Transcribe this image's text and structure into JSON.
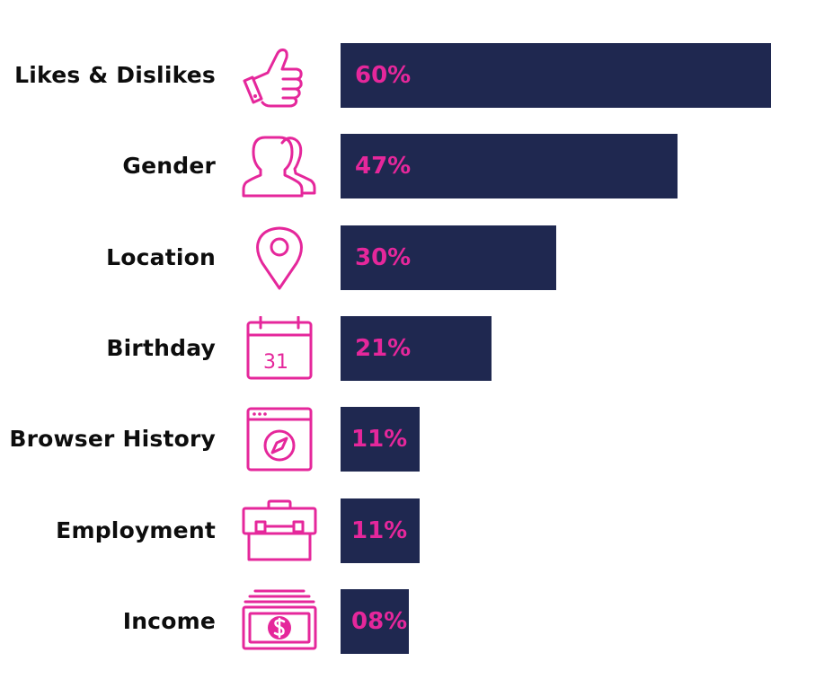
{
  "chart_data": {
    "type": "bar",
    "orientation": "horizontal",
    "title": "",
    "xlabel": "",
    "ylabel": "",
    "xlim": [
      0,
      60
    ],
    "grid": false,
    "bar_color": "#1f2850",
    "accent_color": "#e5279b",
    "categories": [
      "Likes & Dislikes",
      "Gender",
      "Location",
      "Birthday",
      "Browser History",
      "Employment",
      "Income"
    ],
    "values": [
      60,
      47,
      30,
      21,
      11,
      11,
      8
    ],
    "data_labels": [
      "60%",
      "47%",
      "30%",
      "21%",
      "11%",
      "11%",
      "08%"
    ],
    "icons": [
      "thumbs-up-icon",
      "people-icon",
      "location-pin-icon",
      "calendar-icon",
      "browser-compass-icon",
      "briefcase-icon",
      "money-icon"
    ]
  }
}
